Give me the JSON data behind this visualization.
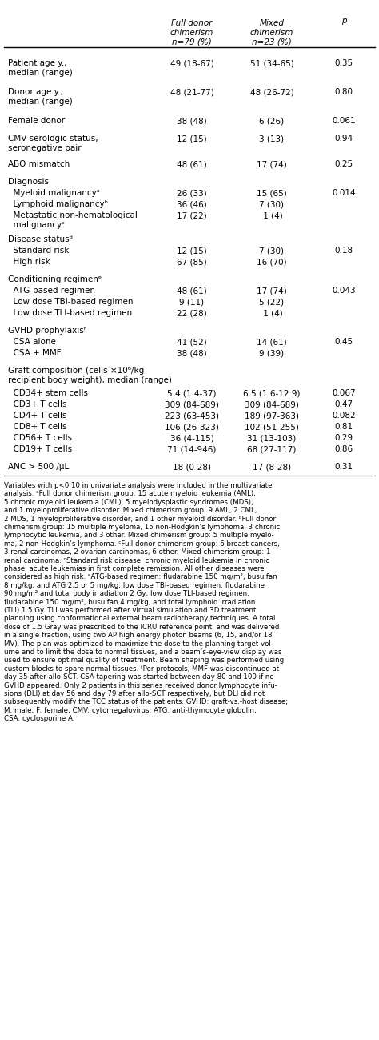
{
  "title_col1": "Full donor\nchimerism\nn=79 (%)",
  "title_col2": "Mixed\nchimerism\nn=23 (%)",
  "title_col3": "p",
  "rows": [
    {
      "label": "Patient age y.,\nmedian (range)",
      "col1": "49 (18-67)",
      "col2": "51 (34-65)",
      "col3": "0.35",
      "indent": 0,
      "bold_label": false,
      "spacer": true
    },
    {
      "label": "Donor age y.,\nmedian (range)",
      "col1": "48 (21-77)",
      "col2": "48 (26-72)",
      "col3": "0.80",
      "indent": 0,
      "bold_label": false,
      "spacer": true
    },
    {
      "label": "Female donor",
      "col1": "38 (48)",
      "col2": "6 (26)",
      "col3": "0.061",
      "indent": 0,
      "bold_label": false,
      "spacer": true
    },
    {
      "label": "CMV serologic status,\nseronegative pair",
      "col1": "12 (15)",
      "col2": "3 (13)",
      "col3": "0.94",
      "indent": 0,
      "bold_label": false,
      "spacer": true
    },
    {
      "label": "ABO mismatch",
      "col1": "48 (61)",
      "col2": "17 (74)",
      "col3": "0.25",
      "indent": 0,
      "bold_label": false,
      "spacer": true
    },
    {
      "label": "Diagnosis",
      "col1": "",
      "col2": "",
      "col3": "",
      "indent": 0,
      "bold_label": false,
      "spacer": false
    },
    {
      "label": "  Myeloid malignancyᵃ",
      "col1": "26 (33)",
      "col2": "15 (65)",
      "col3": "0.014",
      "indent": 1,
      "bold_label": false,
      "spacer": false
    },
    {
      "label": "  Lymphoid malignancyᵇ",
      "col1": "36 (46)",
      "col2": "7 (30)",
      "col3": "",
      "indent": 1,
      "bold_label": false,
      "spacer": false
    },
    {
      "label": "  Metastatic non-hematological\n  malignancyᶜ",
      "col1": "17 (22)",
      "col2": " 1 (4)",
      "col3": "",
      "indent": 1,
      "bold_label": false,
      "spacer": true
    },
    {
      "label": "Disease statusᵈ",
      "col1": "",
      "col2": "",
      "col3": "",
      "indent": 0,
      "bold_label": false,
      "spacer": false
    },
    {
      "label": "  Standard risk",
      "col1": "12 (15)",
      "col2": "7 (30)",
      "col3": "0.18",
      "indent": 1,
      "bold_label": false,
      "spacer": false
    },
    {
      "label": "  High risk",
      "col1": "67 (85)",
      "col2": "16 (70)",
      "col3": "",
      "indent": 1,
      "bold_label": false,
      "spacer": true
    },
    {
      "label": "Conditioning regimenᵉ",
      "col1": "",
      "col2": "",
      "col3": "",
      "indent": 0,
      "bold_label": false,
      "spacer": false
    },
    {
      "label": "  ATG-based regimen",
      "col1": "48 (61)",
      "col2": "17 (74)",
      "col3": "0.043",
      "indent": 1,
      "bold_label": false,
      "spacer": false
    },
    {
      "label": "  Low dose TBI-based regimen",
      "col1": "9 (11)",
      "col2": "5 (22)",
      "col3": "",
      "indent": 1,
      "bold_label": false,
      "spacer": false
    },
    {
      "label": "  Low dose TLI-based regimen",
      "col1": "22 (28)",
      "col2": " 1 (4)",
      "col3": "",
      "indent": 1,
      "bold_label": false,
      "spacer": true
    },
    {
      "label": "GVHD prophylaxisᶠ",
      "col1": "",
      "col2": "",
      "col3": "",
      "indent": 0,
      "bold_label": false,
      "spacer": false
    },
    {
      "label": "  CSA alone",
      "col1": "41 (52)",
      "col2": "14 (61)",
      "col3": "0.45",
      "indent": 1,
      "bold_label": false,
      "spacer": false
    },
    {
      "label": "  CSA + MMF",
      "col1": "38 (48)",
      "col2": "9 (39)",
      "col3": "",
      "indent": 1,
      "bold_label": false,
      "spacer": true
    },
    {
      "label": "Graft composition (cells ×10⁶/kg\nrecipient body weight), median (range)",
      "col1": "",
      "col2": "",
      "col3": "",
      "indent": 0,
      "bold_label": false,
      "spacer": false
    },
    {
      "label": "  CD34+ stem cells",
      "col1": "5.4 (1.4-37)",
      "col2": "6.5 (1.6-12.9)",
      "col3": "0.067",
      "indent": 1,
      "bold_label": false,
      "spacer": false
    },
    {
      "label": "  CD3+ T cells",
      "col1": "309 (84-689)",
      "col2": "309 (84-689)",
      "col3": "0.47",
      "indent": 1,
      "bold_label": false,
      "spacer": false
    },
    {
      "label": "  CD4+ T cells",
      "col1": "223 (63-453)",
      "col2": "189 (97-363)",
      "col3": "0.082",
      "indent": 1,
      "bold_label": false,
      "spacer": false
    },
    {
      "label": "  CD8+ T cells",
      "col1": "106 (26-323)",
      "col2": "102 (51-255)",
      "col3": "0.81",
      "indent": 1,
      "bold_label": false,
      "spacer": false
    },
    {
      "label": "  CD56+ T cells",
      "col1": "36 (4-115)",
      "col2": "31 (13-103)",
      "col3": "0.29",
      "indent": 1,
      "bold_label": false,
      "spacer": false
    },
    {
      "label": "  CD19+ T cells",
      "col1": "71 (14-946)",
      "col2": "68 (27-117)",
      "col3": "0.86",
      "indent": 1,
      "bold_label": false,
      "spacer": true
    },
    {
      "label": "ANC > 500 /μL",
      "col1": "18 (0-28)",
      "col2": "17 (8-28)",
      "col3": "0.31",
      "indent": 0,
      "bold_label": false,
      "spacer": false
    }
  ],
  "footnote": "Variables with p<0.10 in univariate analysis were included in the multivariate\nanalysis. ᵃFull donor chimerism group: 15 acute myeloid leukemia (AML),\n5 chronic myeloid leukemia (CML), 5 myelodysplastic syndromes (MDS),\nand 1 myeloproliferative disorder. Mixed chimerism group: 9 AML, 2 CML,\n2 MDS, 1 myeloproliferative disorder, and 1 other myeloid disorder. ᵇFull donor\nchimerism group: 15 multiple myeloma, 15 non-Hodgkin’s lymphoma, 3 chronic\nlymphocytic leukemia, and 3 other. Mixed chimerism group: 5 multiple myelo-\nma, 2 non-Hodgkin’s lymphoma. ᶜFull donor chimerism group: 6 breast cancers,\n3 renal carcinomas, 2 ovarian carcinomas, 6 other. Mixed chimerism group: 1\nrenal carcinoma. ᵈStandard risk disease: chronic myeloid leukemia in chronic\nphase, acute leukemias in first complete remission. All other diseases were\nconsidered as high risk. ᵉATG-based regimen: fludarabine 150 mg/m², busulfan\n8 mg/kg, and ATG 2.5 or 5 mg/kg; low dose TBI-based regimen: fludarabine\n90 mg/m² and total body irradiation 2 Gy; low dose TLI-based regimen:\nfludarabine 150 mg/m², busulfan 4 mg/kg, and total lymphoid irradiation\n(TLI) 1.5 Gy. TLI was performed after virtual simulation and 3D treatment\nplanning using conformational external beam radiotherapy techniques. A total\ndose of 1.5 Gray was prescribed to the ICRU reference point, and was delivered\nin a single fraction, using two AP high energy photon beams (6, 15, and/or 18\nMV). The plan was optimized to maximize the dose to the planning target vol-\nume and to limit the dose to normal tissues, and a beam’s-eye-view display was\nused to ensure optimal quality of treatment. Beam shaping was performed using\ncustom blocks to spare normal tissues. ᶠPer protocols, MMF was discontinued at\nday 35 after allo-SCT. CSA tapering was started between day 80 and 100 if no\nGVHD appeared. Only 2 patients in this series received donor lymphocyte infu-\nsions (DLI) at day 56 and day 79 after allo-SCT respectively, but DLI did not\nsubsequently modify the TCC status of the patients. GVHD: graft-vs.-host disease;\nM: male; F: female; CMV: cytomegalovirus; ATG: anti-thymocyte globulin;\nCSA: cyclosporine A."
}
